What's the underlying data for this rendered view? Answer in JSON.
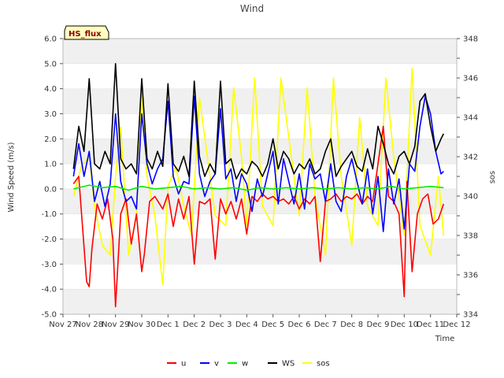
{
  "chart_data": {
    "type": "line",
    "title": "Wind",
    "badge": "HS_flux",
    "xlabel": "Time",
    "ylabel": "Wind Speed (m/s)",
    "y2label": "sos",
    "ylim": [
      -5.0,
      6.0
    ],
    "y2lim": [
      334,
      348
    ],
    "xlim": [
      0,
      15
    ],
    "grid_bands": true,
    "legend_placement": "bottom-center",
    "x_ticks": [
      {
        "value": 0,
        "label": "Nov 27"
      },
      {
        "value": 1,
        "label": "Nov 28"
      },
      {
        "value": 2,
        "label": "Nov 29"
      },
      {
        "value": 3,
        "label": "Nov 30"
      },
      {
        "value": 4,
        "label": "Dec 1"
      },
      {
        "value": 5,
        "label": "Dec 2"
      },
      {
        "value": 6,
        "label": "Dec 3"
      },
      {
        "value": 7,
        "label": "Dec 4"
      },
      {
        "value": 8,
        "label": "Dec 5"
      },
      {
        "value": 9,
        "label": "Dec 6"
      },
      {
        "value": 10,
        "label": "Dec 7"
      },
      {
        "value": 11,
        "label": "Dec 8"
      },
      {
        "value": 12,
        "label": "Dec 9"
      },
      {
        "value": 13,
        "label": "Dec 10"
      },
      {
        "value": 14,
        "label": "Dec 11"
      },
      {
        "value": 15,
        "label": "Dec 12"
      }
    ],
    "y_ticks": [
      {
        "value": -5.0,
        "label": "-5.0"
      },
      {
        "value": -4.0,
        "label": "-4.0"
      },
      {
        "value": -3.0,
        "label": "-3.0"
      },
      {
        "value": -2.0,
        "label": "-2.0"
      },
      {
        "value": -1.0,
        "label": "-1.0"
      },
      {
        "value": 0.0,
        "label": "0.0"
      },
      {
        "value": 1.0,
        "label": "1.0"
      },
      {
        "value": 2.0,
        "label": "2.0"
      },
      {
        "value": 3.0,
        "label": "3.0"
      },
      {
        "value": 4.0,
        "label": "4.0"
      },
      {
        "value": 5.0,
        "label": "5.0"
      },
      {
        "value": 6.0,
        "label": "6.0"
      }
    ],
    "y2_ticks": [
      {
        "value": 334,
        "label": "334"
      },
      {
        "value": 336,
        "label": "336"
      },
      {
        "value": 338,
        "label": "338"
      },
      {
        "value": 340,
        "label": "340"
      },
      {
        "value": 342,
        "label": "342"
      },
      {
        "value": 344,
        "label": "344"
      },
      {
        "value": 346,
        "label": "346"
      },
      {
        "value": 348,
        "label": "348"
      }
    ],
    "series": [
      {
        "name": "u",
        "color": "#ff0000",
        "axis": "left",
        "x": [
          0.4,
          0.6,
          0.9,
          1.0,
          1.1,
          1.3,
          1.5,
          1.7,
          1.9,
          2.0,
          2.2,
          2.4,
          2.6,
          2.8,
          3.0,
          3.1,
          3.3,
          3.5,
          3.8,
          4.0,
          4.2,
          4.4,
          4.6,
          4.8,
          5.0,
          5.2,
          5.4,
          5.6,
          5.8,
          6.0,
          6.2,
          6.4,
          6.6,
          6.8,
          7.0,
          7.2,
          7.4,
          7.6,
          7.8,
          8.0,
          8.2,
          8.4,
          8.6,
          8.8,
          9.0,
          9.2,
          9.4,
          9.6,
          9.8,
          10.0,
          10.2,
          10.4,
          10.6,
          10.8,
          11.0,
          11.2,
          11.4,
          11.6,
          11.8,
          12.0,
          12.2,
          12.4,
          12.6,
          12.8,
          13.0,
          13.1,
          13.3,
          13.5,
          13.7,
          13.9,
          14.1,
          14.3,
          14.5
        ],
        "values": [
          0.2,
          0.5,
          -3.7,
          -3.9,
          -2.4,
          -0.6,
          -1.2,
          -0.4,
          -2.0,
          -4.7,
          -1.0,
          -0.4,
          -2.2,
          -1.0,
          -3.3,
          -2.6,
          -0.5,
          -0.3,
          -0.8,
          -0.2,
          -1.5,
          -0.4,
          -1.2,
          -0.3,
          -3.0,
          -0.5,
          -0.6,
          -0.4,
          -2.8,
          -0.4,
          -1.0,
          -0.5,
          -1.2,
          -0.4,
          -1.8,
          -0.3,
          -0.5,
          -0.2,
          -0.4,
          -0.3,
          -0.5,
          -0.4,
          -0.6,
          -0.3,
          -0.8,
          -0.4,
          -0.6,
          -0.3,
          -2.9,
          -0.5,
          -0.4,
          -0.2,
          -0.5,
          -0.3,
          -0.4,
          -0.2,
          -0.6,
          -0.3,
          -0.5,
          1.0,
          2.5,
          -0.3,
          -0.5,
          -1.0,
          -4.3,
          0.3,
          -3.3,
          -1.0,
          -0.4,
          -0.2,
          -1.4,
          -1.2,
          -0.6
        ]
      },
      {
        "name": "v",
        "color": "#0000ff",
        "axis": "left",
        "x": [
          0.4,
          0.6,
          0.8,
          1.0,
          1.2,
          1.4,
          1.6,
          1.8,
          2.0,
          2.2,
          2.4,
          2.6,
          2.8,
          3.0,
          3.2,
          3.4,
          3.6,
          3.8,
          4.0,
          4.2,
          4.4,
          4.6,
          4.8,
          5.0,
          5.2,
          5.4,
          5.6,
          5.8,
          6.0,
          6.2,
          6.4,
          6.6,
          6.8,
          7.0,
          7.2,
          7.4,
          7.6,
          7.8,
          8.0,
          8.2,
          8.4,
          8.6,
          8.8,
          9.0,
          9.2,
          9.4,
          9.6,
          9.8,
          10.0,
          10.2,
          10.4,
          10.6,
          10.8,
          11.0,
          11.2,
          11.4,
          11.6,
          11.8,
          12.0,
          12.2,
          12.4,
          12.6,
          12.8,
          13.0,
          13.2,
          13.4,
          13.6,
          13.8,
          14.0,
          14.2,
          14.4,
          14.5
        ],
        "values": [
          0.5,
          1.8,
          0.5,
          1.5,
          -0.5,
          0.3,
          -0.7,
          0.2,
          3.0,
          0.3,
          -0.5,
          -0.3,
          -0.8,
          3.0,
          1.0,
          0.2,
          0.8,
          1.2,
          3.5,
          0.5,
          -0.2,
          0.3,
          0.2,
          3.7,
          0.6,
          -0.3,
          0.3,
          0.6,
          3.2,
          0.4,
          0.8,
          -0.5,
          0.6,
          0.2,
          -0.9,
          0.4,
          -0.3,
          0.6,
          1.5,
          -0.6,
          1.2,
          0.3,
          -0.6,
          0.6,
          -0.8,
          1.0,
          0.4,
          0.6,
          -0.5,
          1.0,
          -0.5,
          -0.9,
          0.5,
          1.2,
          0.3,
          -0.6,
          0.8,
          -1.0,
          0.5,
          -1.7,
          0.8,
          -0.6,
          0.4,
          -1.6,
          1.0,
          0.7,
          2.5,
          3.7,
          3.0,
          1.5,
          0.6,
          0.7
        ]
      },
      {
        "name": "w",
        "color": "#00ee00",
        "axis": "left",
        "x": [
          0.4,
          1.0,
          1.5,
          2.0,
          2.5,
          3.0,
          3.5,
          4.0,
          4.5,
          5.0,
          5.5,
          6.0,
          6.5,
          7.0,
          7.5,
          8.0,
          8.5,
          9.0,
          9.5,
          10.0,
          10.5,
          11.0,
          11.5,
          12.0,
          12.5,
          13.0,
          13.5,
          14.0,
          14.5
        ],
        "values": [
          0.0,
          0.15,
          0.05,
          0.1,
          -0.05,
          0.1,
          0.0,
          0.05,
          0.1,
          0.0,
          0.05,
          0.0,
          0.05,
          -0.05,
          0.05,
          0.0,
          0.05,
          0.0,
          0.05,
          0.0,
          0.05,
          0.0,
          0.05,
          0.0,
          0.1,
          0.0,
          0.05,
          0.1,
          0.05
        ]
      },
      {
        "name": "WS",
        "color": "#000000",
        "axis": "left",
        "x": [
          0.4,
          0.6,
          0.8,
          1.0,
          1.2,
          1.4,
          1.6,
          1.8,
          2.0,
          2.2,
          2.4,
          2.6,
          2.8,
          3.0,
          3.2,
          3.4,
          3.6,
          3.8,
          4.0,
          4.2,
          4.4,
          4.6,
          4.8,
          5.0,
          5.2,
          5.4,
          5.6,
          5.8,
          6.0,
          6.2,
          6.4,
          6.6,
          6.8,
          7.0,
          7.2,
          7.4,
          7.6,
          7.8,
          8.0,
          8.2,
          8.4,
          8.6,
          8.8,
          9.0,
          9.2,
          9.4,
          9.6,
          9.8,
          10.0,
          10.2,
          10.4,
          10.6,
          10.8,
          11.0,
          11.2,
          11.4,
          11.6,
          11.8,
          12.0,
          12.2,
          12.4,
          12.6,
          12.8,
          13.0,
          13.2,
          13.4,
          13.6,
          13.8,
          14.0,
          14.2,
          14.4,
          14.5
        ],
        "values": [
          0.8,
          2.5,
          1.5,
          4.4,
          1.0,
          0.8,
          1.5,
          1.0,
          5.0,
          1.2,
          0.8,
          1.0,
          0.6,
          4.4,
          1.2,
          0.8,
          1.5,
          0.9,
          4.2,
          1.0,
          0.7,
          1.3,
          0.5,
          4.3,
          1.3,
          0.5,
          1.0,
          0.6,
          4.3,
          1.0,
          1.2,
          0.4,
          0.8,
          0.6,
          1.1,
          0.9,
          0.5,
          1.0,
          2.0,
          0.8,
          1.5,
          1.2,
          0.6,
          1.0,
          0.8,
          1.2,
          0.6,
          0.8,
          1.5,
          2.0,
          0.5,
          0.9,
          1.2,
          1.5,
          0.9,
          0.7,
          1.6,
          0.8,
          2.5,
          1.8,
          1.0,
          0.6,
          1.3,
          1.5,
          1.0,
          1.7,
          3.5,
          3.8,
          2.5,
          1.5,
          2.0,
          2.2
        ]
      },
      {
        "name": "sos",
        "color": "#ffff00",
        "axis": "right",
        "x": [
          0.4,
          0.7,
          1.0,
          1.2,
          1.5,
          1.8,
          2.0,
          2.2,
          2.5,
          2.8,
          3.0,
          3.2,
          3.5,
          3.8,
          4.0,
          4.3,
          4.6,
          4.9,
          5.2,
          5.5,
          5.8,
          6.2,
          6.5,
          6.8,
          7.0,
          7.3,
          7.6,
          8.0,
          8.3,
          8.6,
          9.0,
          9.3,
          9.6,
          10.0,
          10.3,
          10.6,
          11.0,
          11.3,
          11.6,
          12.0,
          12.3,
          12.6,
          13.0,
          13.3,
          13.6,
          14.0,
          14.3,
          14.5
        ],
        "values": [
          340.0,
          341.5,
          342.0,
          339.5,
          337.5,
          337.0,
          341.0,
          343.5,
          337.0,
          339.0,
          345.0,
          341.0,
          339.0,
          335.5,
          340.5,
          341.5,
          339.5,
          338.0,
          345.0,
          342.0,
          339.0,
          338.5,
          345.5,
          342.0,
          338.5,
          346.0,
          339.5,
          338.5,
          346.0,
          343.0,
          339.0,
          345.5,
          340.0,
          337.0,
          346.0,
          341.0,
          337.5,
          344.0,
          339.5,
          338.5,
          346.0,
          342.0,
          338.0,
          346.5,
          338.5,
          337.0,
          341.0,
          338.0
        ]
      }
    ]
  }
}
